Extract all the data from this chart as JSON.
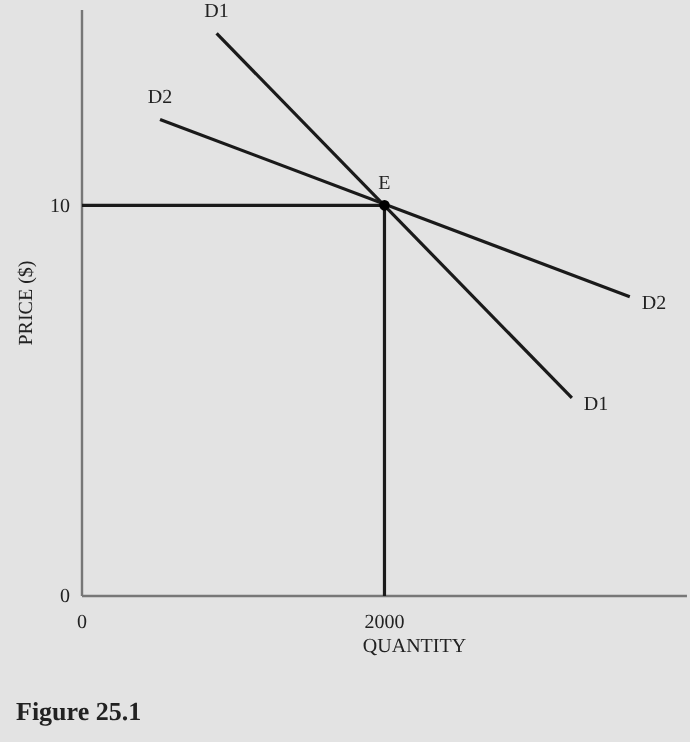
{
  "chart_data": {
    "type": "line",
    "title": "Figure 25.1",
    "xlabel": "QUANTITY",
    "ylabel": "PRICE ($)",
    "xlim": [
      0,
      4000
    ],
    "ylim": [
      0,
      15
    ],
    "xticks": [
      0,
      2000
    ],
    "yticks": [
      0,
      10
    ],
    "grid": false,
    "marker": "none",
    "series": [
      {
        "color": "#1a1a1a",
        "x": [
          890,
          3239
        ],
        "values": [
          14.4,
          5.07
        ]
      },
      {
        "color": "#1a1a1a",
        "x": [
          516,
          3622
        ],
        "values": [
          12.2,
          7.66
        ]
      },
      {
        "color": "#1a1a1a",
        "x": [
          0,
          2000,
          2000
        ],
        "values": [
          10,
          10,
          0
        ]
      },
      {
        "type": "scatter",
        "marker": "circle",
        "color": "#000000",
        "x": [
          2000
        ],
        "values": [
          10
        ]
      }
    ],
    "annotations": [
      {
        "text": "D1",
        "x": 890,
        "y": 14.4
      },
      {
        "text": "D1",
        "x": 3239,
        "y": 5.07
      },
      {
        "text": "D2",
        "x": 516,
        "y": 12.2
      },
      {
        "text": "D2",
        "x": 3622,
        "y": 7.66
      },
      {
        "text": "E",
        "x": 2000,
        "y": 10
      }
    ]
  }
}
